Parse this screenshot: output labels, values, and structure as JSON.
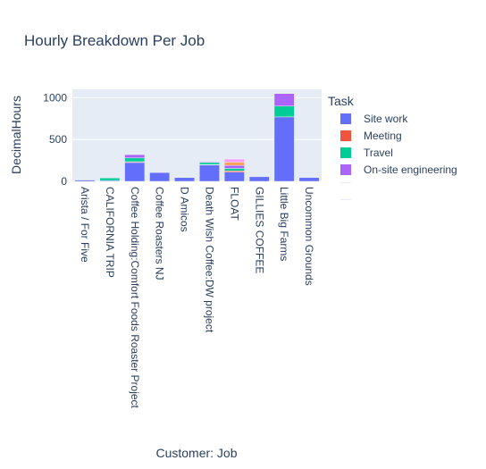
{
  "chart_data": {
    "type": "bar",
    "barmode": "stack",
    "title": "Hourly Breakdown Per Job",
    "xlabel": "Customer: Job",
    "ylabel": "DecimalHours",
    "ylim": [
      0,
      1100
    ],
    "yticks": [
      0,
      500,
      1000
    ],
    "grid": true,
    "legend_title": "Task",
    "legend_placement": "right",
    "categories": [
      "Arista / For Five",
      "CALIFORNIA TRIP",
      "Coffee Holding:Comfort Foods Roaster Project",
      "Coffee Roasters NJ",
      "D Amicos",
      "Death Wish Coffee:DW project",
      "FLOAT",
      "GILLIES COFFEE",
      "Little Big Farms",
      "Uncommon Grounds"
    ],
    "series": [
      {
        "name": "Site work",
        "color": "#636efa",
        "values": [
          15,
          10,
          225,
          105,
          45,
          195,
          110,
          55,
          770,
          45
        ]
      },
      {
        "name": "Meeting",
        "color": "#ef553b",
        "values": [
          0,
          0,
          10,
          0,
          0,
          5,
          15,
          0,
          0,
          0
        ]
      },
      {
        "name": "Travel",
        "color": "#00cc96",
        "values": [
          0,
          30,
          45,
          0,
          0,
          25,
          30,
          0,
          130,
          0
        ]
      },
      {
        "name": "On-site engineering",
        "color": "#ab63fa",
        "values": [
          0,
          0,
          40,
          0,
          0,
          10,
          35,
          0,
          150,
          0
        ]
      },
      {
        "name": "",
        "color": "#ffa15a",
        "values": [
          0,
          0,
          0,
          0,
          0,
          5,
          40,
          0,
          0,
          0
        ]
      },
      {
        "name": "",
        "color": "#ff97ff",
        "values": [
          0,
          0,
          5,
          0,
          0,
          5,
          35,
          0,
          5,
          0
        ]
      }
    ]
  }
}
